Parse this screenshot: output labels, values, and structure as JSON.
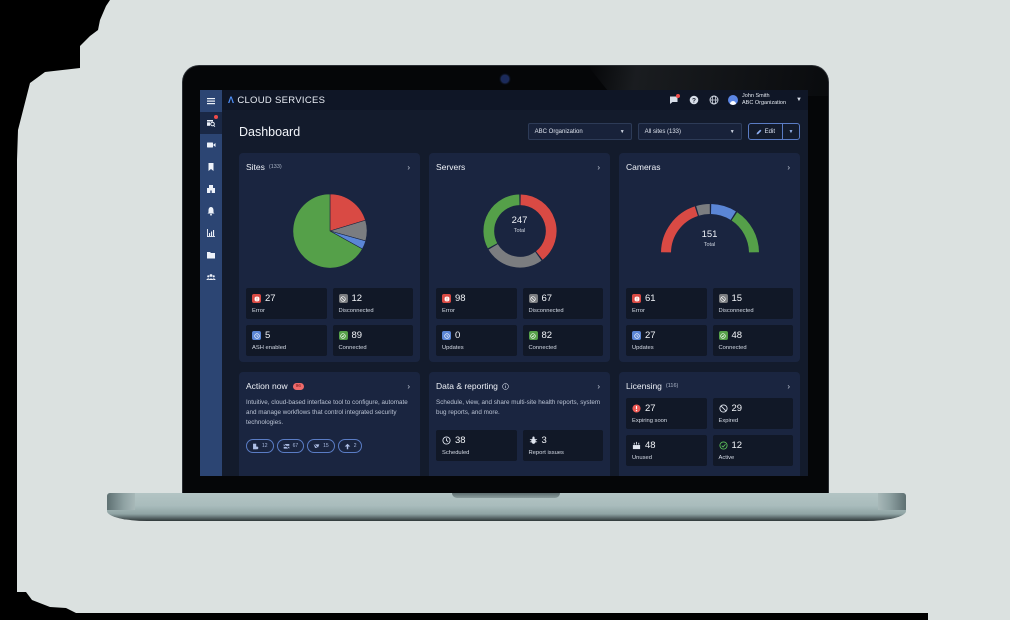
{
  "app": {
    "brand": "CLOUD SERVICES",
    "brand_mark": "Λ"
  },
  "sidebar": {
    "items": [
      {
        "name": "menu",
        "icon": "hamburger-icon"
      },
      {
        "name": "site-search",
        "icon": "site-search-icon",
        "active": true,
        "notification": true
      },
      {
        "name": "cameras",
        "icon": "video-camera-icon"
      },
      {
        "name": "bookmarks",
        "icon": "bookmark-icon"
      },
      {
        "name": "sites",
        "icon": "buildings-icon"
      },
      {
        "name": "alerts",
        "icon": "bell-icon"
      },
      {
        "name": "reports",
        "icon": "bar-chart-icon"
      },
      {
        "name": "files",
        "icon": "folder-icon"
      },
      {
        "name": "users",
        "icon": "users-icon"
      }
    ]
  },
  "topbar": {
    "icons": [
      "messages-icon",
      "help-icon",
      "globe-icon"
    ],
    "user": {
      "name": "John Smith",
      "org": "ABC Organization"
    }
  },
  "header": {
    "title": "Dashboard",
    "org_select": "ABC Organization",
    "sites_select": "All sites (133)",
    "edit_label": "Edit"
  },
  "colors": {
    "error": "#d94a44",
    "disconnected": "#7b7d80",
    "updates": "#5b86d6",
    "connected": "#55a049",
    "accent": "#5a7cc4",
    "badge": "#ef6a6a"
  },
  "cards": {
    "sites": {
      "title": "Sites",
      "count": "(133)",
      "stats": [
        {
          "value": "27",
          "label": "Error",
          "kind": "error"
        },
        {
          "value": "12",
          "label": "Disconnected",
          "kind": "disconnected"
        },
        {
          "value": "5",
          "label": "ASH enabled",
          "kind": "updates"
        },
        {
          "value": "89",
          "label": "Connected",
          "kind": "connected"
        }
      ]
    },
    "servers": {
      "title": "Servers",
      "total": "247",
      "total_label": "Total",
      "stats": [
        {
          "value": "98",
          "label": "Error",
          "kind": "error"
        },
        {
          "value": "67",
          "label": "Disconnected",
          "kind": "disconnected"
        },
        {
          "value": "0",
          "label": "Updates",
          "kind": "updates"
        },
        {
          "value": "82",
          "label": "Connected",
          "kind": "connected"
        }
      ]
    },
    "cameras": {
      "title": "Cameras",
      "total": "151",
      "total_label": "Total",
      "stats": [
        {
          "value": "61",
          "label": "Error",
          "kind": "error"
        },
        {
          "value": "15",
          "label": "Disconnected",
          "kind": "disconnected"
        },
        {
          "value": "27",
          "label": "Updates",
          "kind": "updates"
        },
        {
          "value": "48",
          "label": "Connected",
          "kind": "connected"
        }
      ]
    },
    "action_now": {
      "title": "Action now",
      "badge": "96",
      "description": "Intuitive, cloud-based interface tool to configure, automate and manage workflows that control integrated security technologies.",
      "pills": [
        {
          "icon": "site-alert-icon",
          "value": "12"
        },
        {
          "icon": "server-off-icon",
          "value": "67"
        },
        {
          "icon": "camera-off-icon",
          "value": "15"
        },
        {
          "icon": "arrow-up-icon",
          "value": "2"
        }
      ]
    },
    "data_reporting": {
      "title": "Data & reporting",
      "description": "Schedule, view, and share multi-site health reports, system bug reports, and more.",
      "stats": [
        {
          "value": "38",
          "label": "Scheduled",
          "icon": "clock-icon"
        },
        {
          "value": "3",
          "label": "Report issues",
          "icon": "bug-icon"
        }
      ]
    },
    "licensing": {
      "title": "Licensing",
      "count": "(116)",
      "stats": [
        {
          "value": "27",
          "label": "Expiring soon",
          "icon": "alert-circle-icon"
        },
        {
          "value": "29",
          "label": "Expired",
          "icon": "blocked-icon"
        },
        {
          "value": "48",
          "label": "Unused",
          "icon": "unused-icon"
        },
        {
          "value": "12",
          "label": "Active",
          "icon": "check-circle-icon"
        }
      ]
    }
  },
  "chart_data": [
    {
      "type": "pie",
      "title": "Sites (133)",
      "categories": [
        "Error",
        "Disconnected",
        "ASH enabled",
        "Connected"
      ],
      "values": [
        27,
        12,
        5,
        89
      ]
    },
    {
      "type": "pie",
      "title": "Servers",
      "subtitle": "247 Total",
      "categories": [
        "Error",
        "Disconnected",
        "Updates",
        "Connected"
      ],
      "values": [
        98,
        67,
        0,
        82
      ]
    },
    {
      "type": "pie",
      "title": "Cameras",
      "subtitle": "151 Total",
      "categories": [
        "Error",
        "Disconnected",
        "Updates",
        "Connected"
      ],
      "values": [
        61,
        15,
        27,
        48
      ]
    }
  ]
}
